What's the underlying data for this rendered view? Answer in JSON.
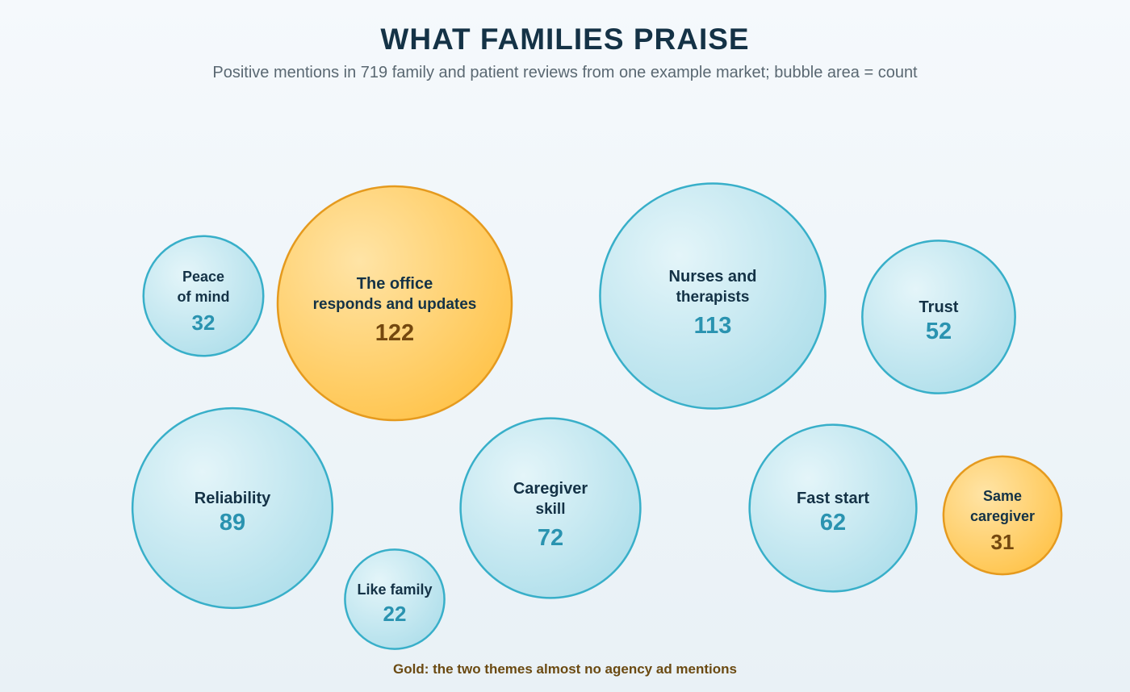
{
  "chart_data": {
    "type": "bubble",
    "title": "WHAT FAMILIES PRAISE",
    "subtitle": "Positive mentions in 719 family and patient reviews from one example market; bubble area = count",
    "footnote": "Gold: the two themes almost no agency ad mentions",
    "size_encoding": "area",
    "bubbles": [
      {
        "label": [
          "Peace",
          "of mind"
        ],
        "value": 32,
        "highlight": false
      },
      {
        "label": [
          "The office",
          "responds and updates"
        ],
        "value": 122,
        "highlight": true
      },
      {
        "label": [
          "Nurses and",
          "therapists"
        ],
        "value": 113,
        "highlight": false
      },
      {
        "label": [
          "Trust"
        ],
        "value": 52,
        "highlight": false
      },
      {
        "label": [
          "Reliability"
        ],
        "value": 89,
        "highlight": false
      },
      {
        "label": [
          "Like family"
        ],
        "value": 22,
        "highlight": false
      },
      {
        "label": [
          "Caregiver",
          "skill"
        ],
        "value": 72,
        "highlight": false
      },
      {
        "label": [
          "Fast start"
        ],
        "value": 62,
        "highlight": false
      },
      {
        "label": [
          "Same",
          "caregiver"
        ],
        "value": 31,
        "highlight": true
      }
    ],
    "colors": {
      "normal_fill": "#bde6f0",
      "normal_stroke": "#38afc9",
      "normal_value": "#2a93b0",
      "highlight_fill": "#ffc95a",
      "highlight_stroke": "#e59a1e",
      "highlight_value": "#74480f",
      "label": "#143246"
    }
  }
}
